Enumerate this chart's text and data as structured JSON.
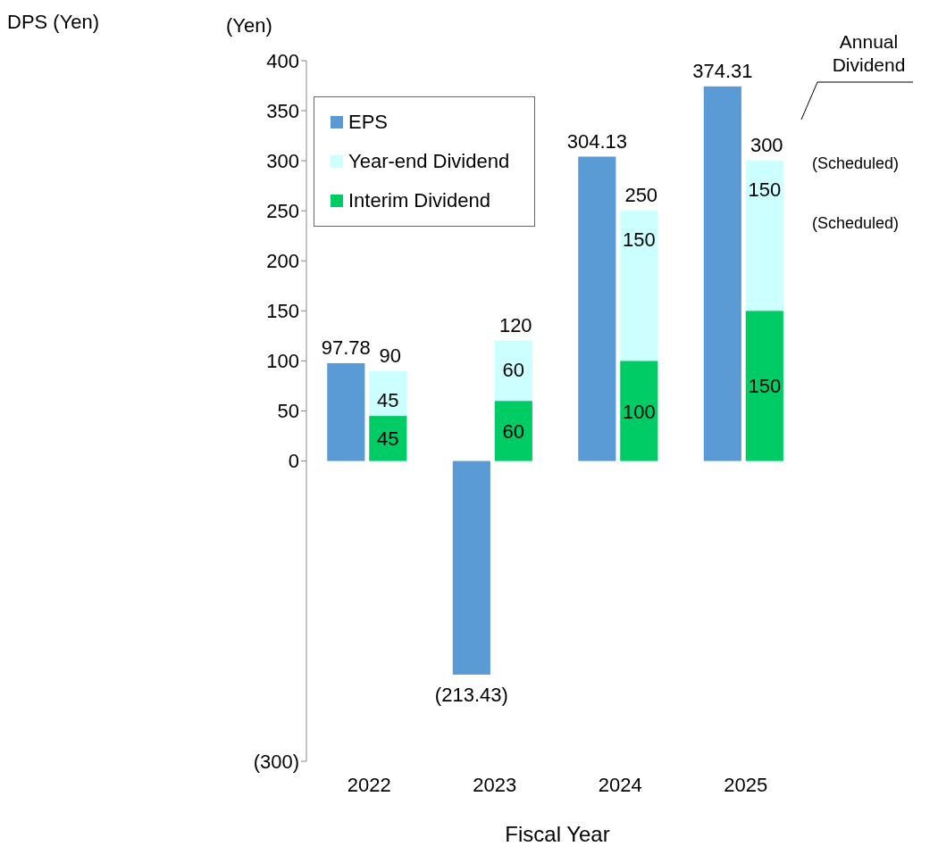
{
  "chart_data": {
    "type": "bar",
    "xlabel": "Fiscal Year",
    "ylabel": "(Yen)",
    "categories": [
      "2022",
      "2023",
      "2024",
      "2025"
    ],
    "series": [
      {
        "name": "EPS",
        "color": "#5b9bd5",
        "values": [
          97.78,
          -213.43,
          304.13,
          374.31
        ],
        "value_labels": [
          "97.78",
          "(213.43)",
          "304.13",
          "374.31"
        ]
      },
      {
        "name": "Year-end Dividend",
        "color": "#ccffff",
        "values": [
          45,
          60,
          150,
          150
        ],
        "base": [
          45,
          60,
          100,
          150
        ]
      },
      {
        "name": "Interim Dividend",
        "color": "#00cc66",
        "values": [
          45,
          60,
          100,
          150
        ]
      }
    ],
    "data_labels": true,
    "ylim": [
      -300,
      400
    ],
    "yticks": [
      {
        "value": -300,
        "label": "(300)"
      },
      0,
      50,
      100,
      150,
      200,
      250,
      300,
      350,
      400
    ],
    "grid": false,
    "legend": "top left",
    "annotations": [
      "DPS (Yen)",
      "Annual Dividend",
      "(Scheduled)",
      "(Scheduled)",
      {
        "text": "90",
        "x": "2022",
        "y": 90
      },
      {
        "text": "120",
        "x": "2023",
        "y": 120
      },
      {
        "text": "250",
        "x": "2024",
        "y": 250
      },
      {
        "text": "300",
        "x": "2025",
        "y": 300
      }
    ]
  }
}
